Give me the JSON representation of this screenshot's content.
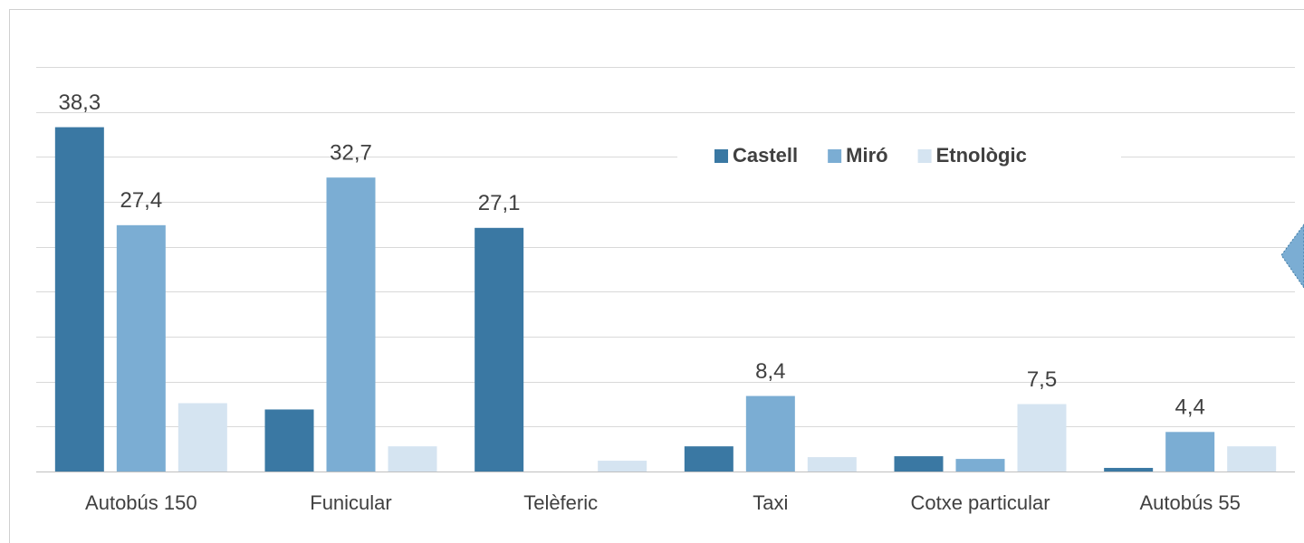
{
  "chart_data": {
    "type": "bar",
    "categories": [
      "Autobús 150",
      "Funicular",
      "Telèferic",
      "Taxi",
      "Cotxe particular",
      "Autobús 55"
    ],
    "series": [
      {
        "name": "Castell",
        "color": "#3a78a3",
        "values": [
          38.3,
          6.9,
          27.1,
          2.8,
          1.7,
          0.4
        ],
        "value_labels": [
          "38,3",
          null,
          "27,1",
          null,
          null,
          null
        ]
      },
      {
        "name": "Miró",
        "color": "#7badd3",
        "values": [
          27.4,
          32.7,
          0,
          8.4,
          1.4,
          4.4
        ],
        "value_labels": [
          "27,4",
          "32,7",
          null,
          "8,4",
          null,
          "4,4"
        ]
      },
      {
        "name": "Etnològic",
        "color": "#d5e4f1",
        "values": [
          7.6,
          2.8,
          1.2,
          1.6,
          7.5,
          2.8
        ],
        "value_labels": [
          null,
          null,
          null,
          null,
          "7,5",
          null
        ]
      }
    ],
    "ylim": [
      0,
      45
    ],
    "yticks": [
      0,
      5,
      10,
      15,
      20,
      25,
      30,
      35,
      40,
      45
    ],
    "grid": true
  }
}
